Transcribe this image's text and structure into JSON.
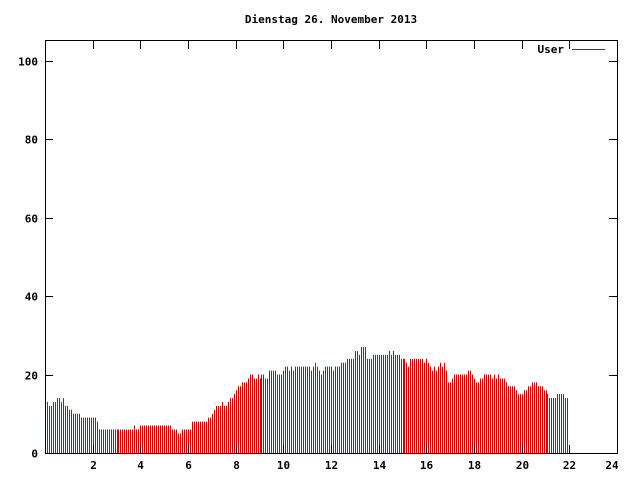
{
  "chart_data": {
    "type": "bar",
    "title": "Dienstag 26. November 2013",
    "xlabel": "",
    "ylabel": "",
    "xlim": [
      0,
      24
    ],
    "ylim": [
      0,
      105
    ],
    "x_ticks": [
      2,
      4,
      6,
      8,
      10,
      12,
      14,
      16,
      18,
      20,
      22,
      24
    ],
    "y_ticks": [
      0,
      20,
      40,
      60,
      80,
      100
    ],
    "legend_position": "top-right",
    "grid": false,
    "bar_color": "#cc0000",
    "series": [
      {
        "name": "User",
        "interval_minutes": 5,
        "values": [
          14,
          13,
          12,
          12,
          13,
          13,
          14,
          14,
          13,
          14,
          12,
          12,
          11,
          11,
          10,
          10,
          10,
          10,
          9,
          9,
          9,
          9,
          9,
          9,
          9,
          9,
          8,
          6,
          6,
          6,
          6,
          6,
          6,
          6,
          6,
          6,
          6,
          6,
          6,
          6,
          6,
          6,
          6,
          6,
          6,
          7,
          6,
          6,
          7,
          7,
          7,
          7,
          7,
          7,
          7,
          7,
          7,
          7,
          7,
          7,
          7,
          7,
          7,
          7,
          6,
          6,
          6,
          5,
          5,
          6,
          6,
          6,
          6,
          6,
          8,
          8,
          8,
          8,
          8,
          8,
          8,
          8,
          9,
          9,
          10,
          11,
          12,
          12,
          12,
          13,
          12,
          12,
          13,
          14,
          14,
          15,
          16,
          17,
          17,
          18,
          18,
          18,
          19,
          20,
          20,
          19,
          19,
          20,
          19,
          20,
          20,
          19,
          19,
          21,
          21,
          21,
          21,
          20,
          20,
          20,
          21,
          22,
          22,
          21,
          22,
          21,
          22,
          22,
          22,
          22,
          22,
          22,
          22,
          22,
          21,
          22,
          23,
          22,
          21,
          20,
          21,
          22,
          22,
          22,
          22,
          21,
          22,
          22,
          22,
          23,
          23,
          23,
          24,
          24,
          24,
          24,
          26,
          26,
          25,
          27,
          27,
          27,
          24,
          24,
          24,
          25,
          25,
          25,
          25,
          25,
          25,
          25,
          25,
          26,
          25,
          26,
          25,
          25,
          25,
          24,
          24,
          24,
          23,
          22,
          24,
          24,
          24,
          24,
          24,
          24,
          24,
          23,
          24,
          23,
          22,
          21,
          22,
          21,
          22,
          23,
          22,
          23,
          21,
          18,
          18,
          19,
          20,
          20,
          20,
          20,
          20,
          20,
          20,
          21,
          21,
          20,
          19,
          18,
          18,
          19,
          19,
          20,
          20,
          20,
          20,
          19,
          20,
          19,
          20,
          19,
          19,
          19,
          18,
          17,
          17,
          17,
          17,
          16,
          15,
          15,
          15,
          16,
          16,
          17,
          17,
          18,
          18,
          18,
          17,
          17,
          17,
          16,
          16,
          15,
          14,
          14,
          14,
          14,
          15,
          15,
          15,
          15,
          14,
          14
        ]
      }
    ]
  }
}
